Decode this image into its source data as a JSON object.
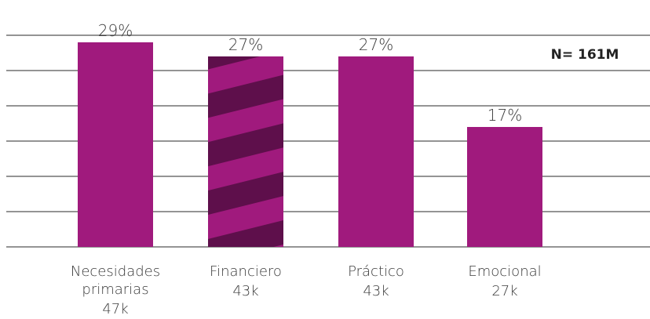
{
  "chart_data": {
    "type": "bar",
    "categories": [
      "Necesidades primarias",
      "Financiero",
      "Práctico",
      "Emocional"
    ],
    "values": [
      29,
      27,
      27,
      17
    ],
    "value_labels": [
      "29%",
      "27%",
      "27%",
      "17%"
    ],
    "count_labels": [
      "47k",
      "43k",
      "43k",
      "27k"
    ],
    "hatched": [
      false,
      true,
      false,
      false
    ],
    "color": "#a01a7d",
    "hatch_color": "#5e0f4b",
    "ylim": [
      0,
      30
    ],
    "yticks": [
      0,
      5,
      10,
      15,
      20,
      25,
      30
    ],
    "grid": true,
    "annotation": "N= 161M"
  }
}
